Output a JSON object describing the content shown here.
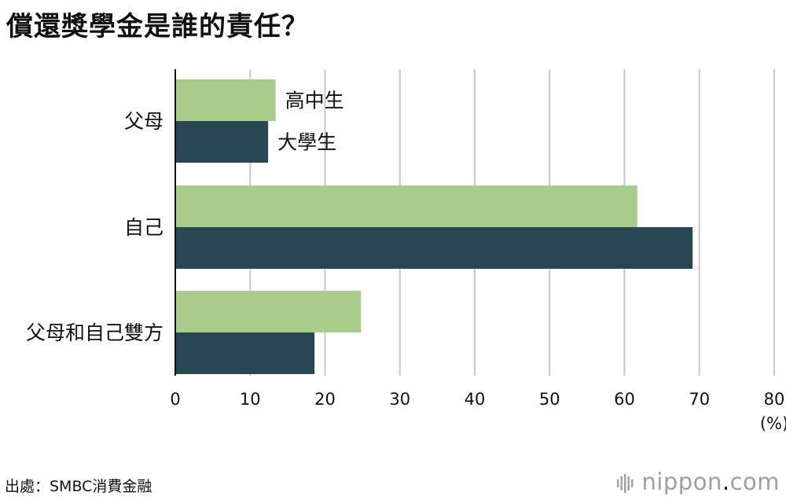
{
  "title": "償還獎學金是誰的責任？",
  "source": "出處：SMBC消費金融",
  "brand": {
    "name": "nippon",
    "dot": ".",
    "tld": "com",
    "logo_icon": "nippon-bars-logo-icon"
  },
  "colors": {
    "high_school": "#a8cd8b",
    "university": "#264753",
    "grid": "#c8c8c8",
    "axis": "#111111"
  },
  "chart_data": {
    "type": "bar",
    "orientation": "horizontal",
    "categories": [
      "父母",
      "自己",
      "父母和自己雙方"
    ],
    "series": [
      {
        "name": "高中生",
        "values": [
          13.4,
          61.7,
          24.8
        ]
      },
      {
        "name": "大學生",
        "values": [
          12.4,
          69.1,
          18.6
        ]
      }
    ],
    "xlim": [
      0,
      80
    ],
    "xticks": [
      "0",
      "10",
      "20",
      "30",
      "40",
      "50",
      "60",
      "70",
      "80"
    ],
    "xunit": "(%)",
    "grid": true,
    "legend": "inline labels next to first category bars"
  }
}
